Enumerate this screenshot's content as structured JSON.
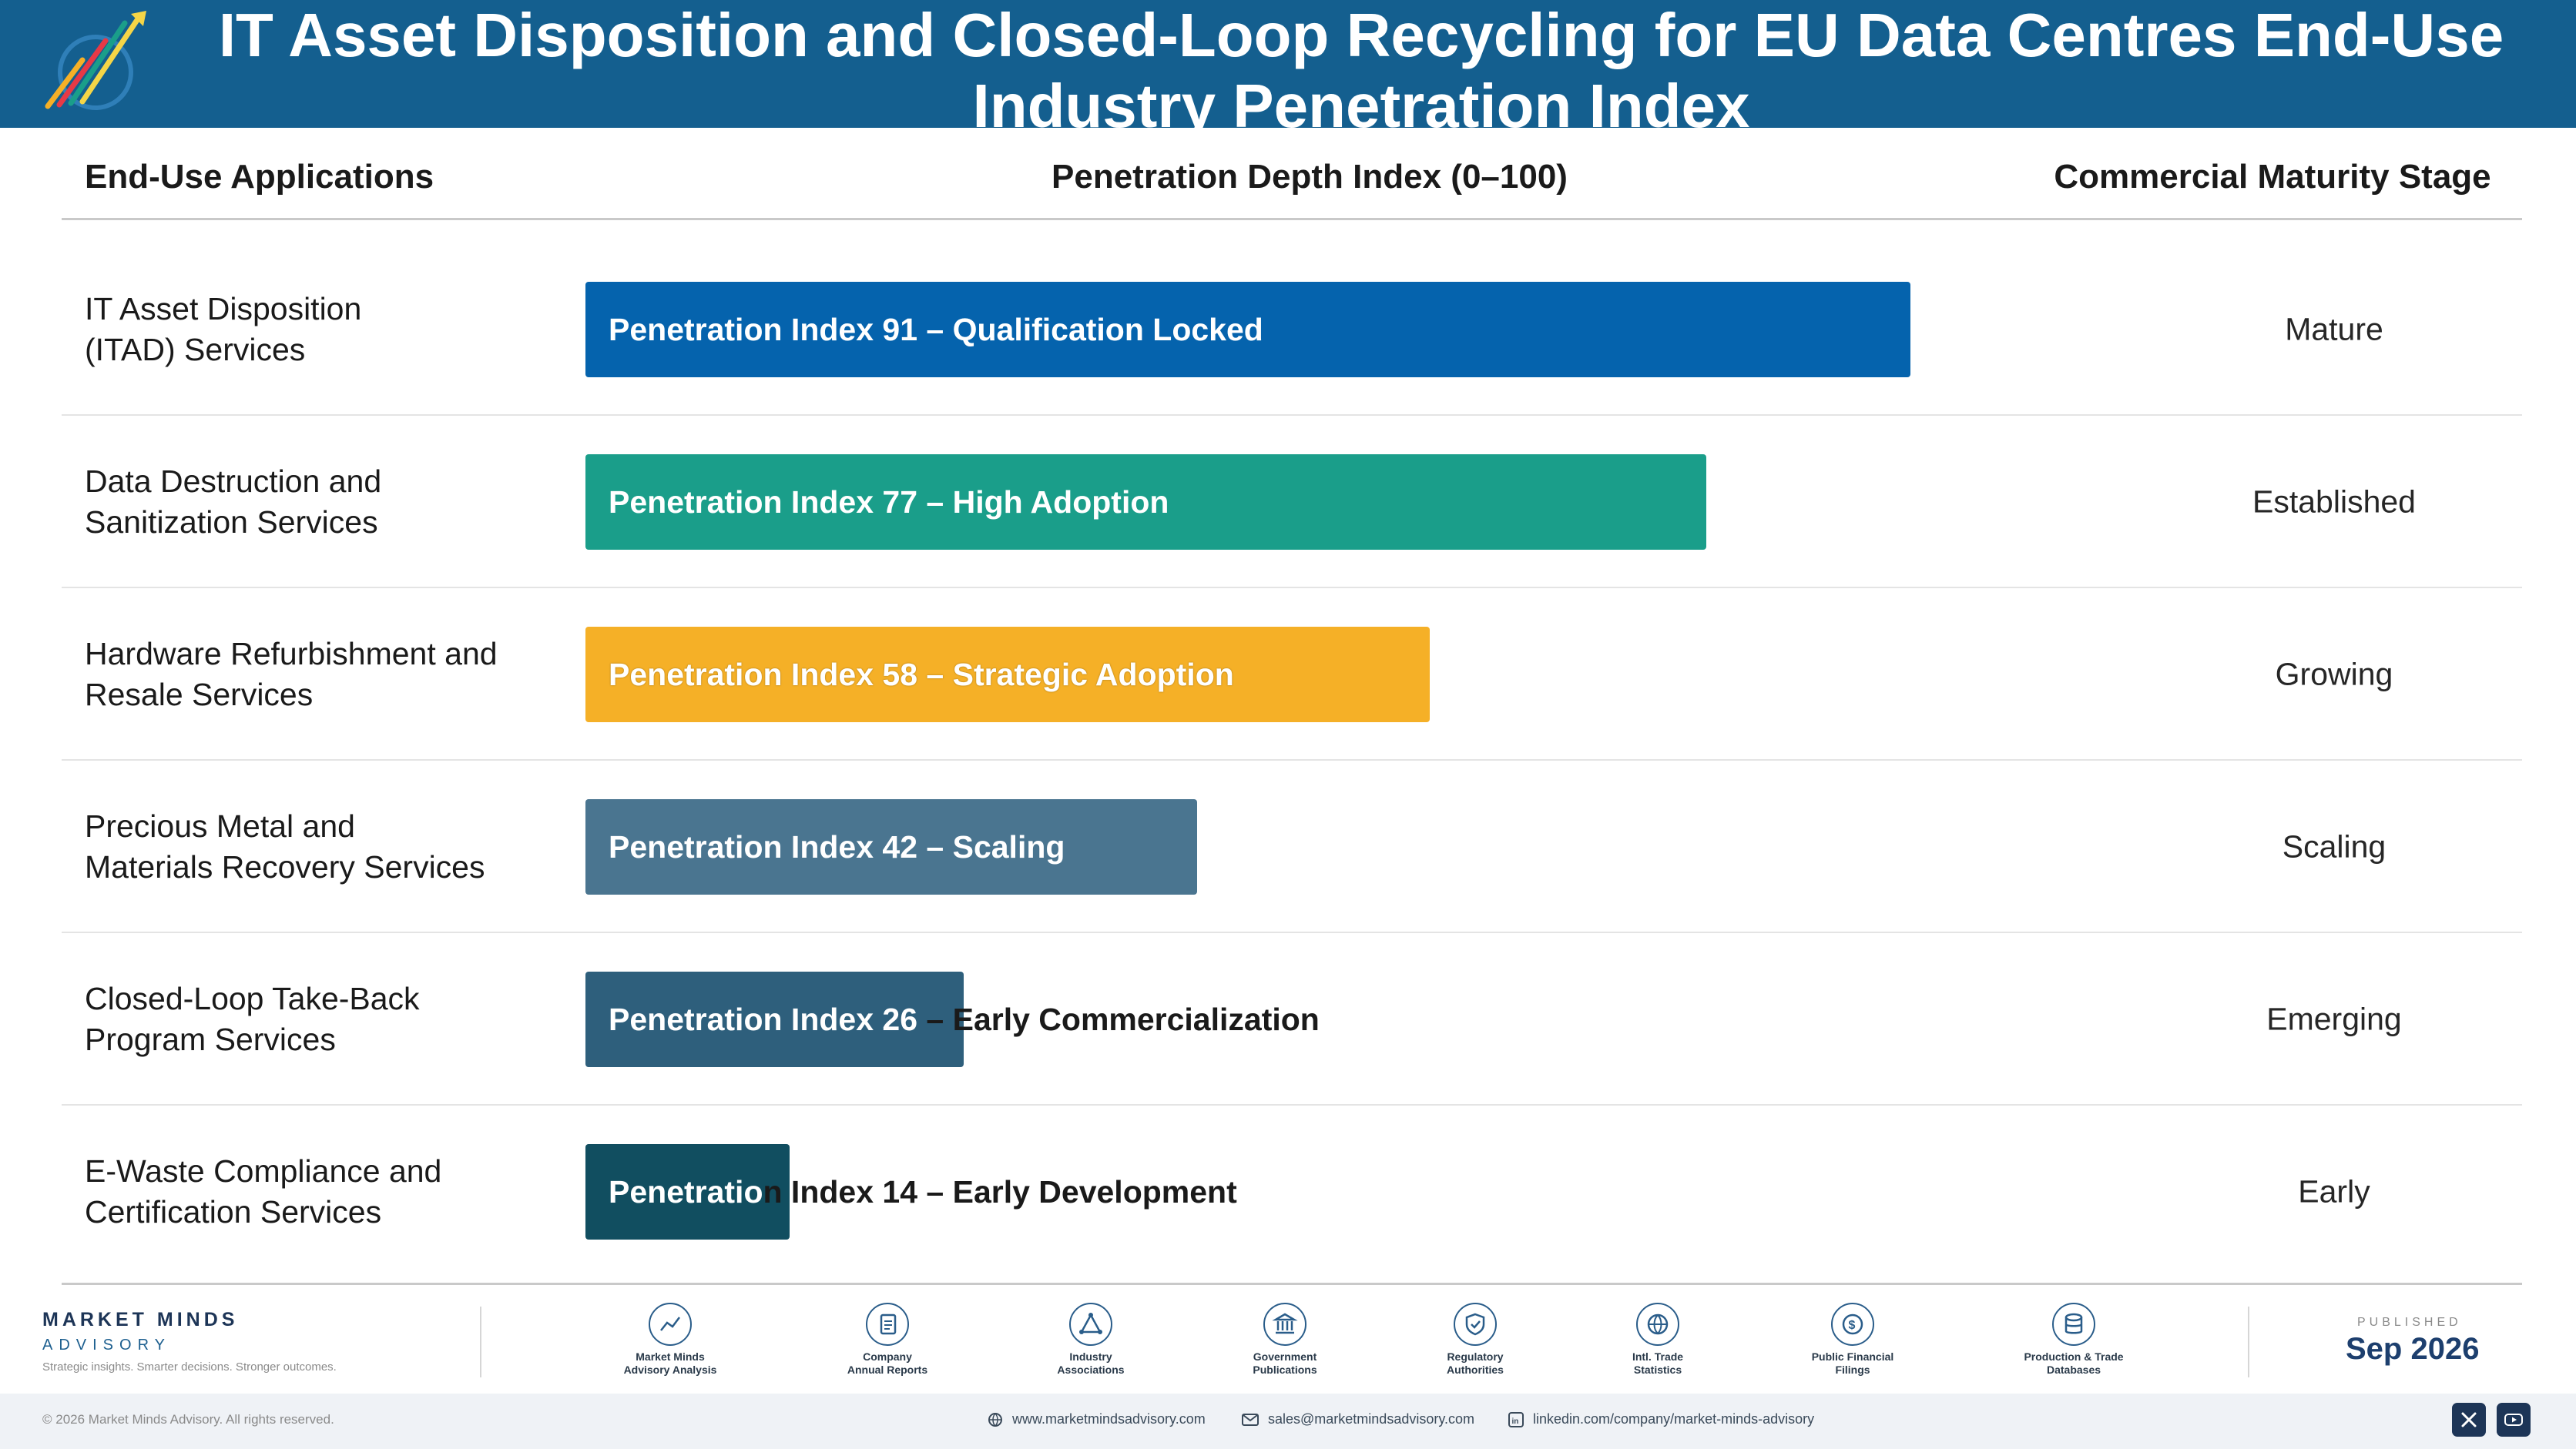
{
  "header": {
    "title": "IT Asset Disposition and Closed-Loop Recycling for EU Data Centres End-Use Industry Penetration Index",
    "logo_text": "Market Minds Advisory"
  },
  "columns": {
    "applications": "End-Use Applications",
    "penetration": "Penetration Depth Index (0–100)",
    "maturity": "Commercial Maturity Stage"
  },
  "chart_data": {
    "type": "bar",
    "orientation": "horizontal",
    "title": "IT Asset Disposition and Closed-Loop Recycling for EU Data Centres End-Use Industry Penetration Index",
    "xlabel": "Penetration Depth Index (0–100)",
    "xlim": [
      0,
      100
    ],
    "categories": [
      "IT Asset Disposition\n(ITAD) Services",
      "Data Destruction and\nSanitization Services",
      "Hardware Refurbishment and\nResale Services",
      "Precious Metal and\nMaterials Recovery Services",
      "Closed-Loop Take-Back\nProgram Services",
      "E-Waste Compliance and\nCertification Services"
    ],
    "values": [
      91,
      77,
      58,
      42,
      26,
      14
    ],
    "bar_labels": [
      "Penetration Index 91 – Qualification Locked",
      "Penetration Index 77 – High Adoption",
      "Penetration Index 58 – Strategic Adoption",
      "Penetration Index 42 – Scaling",
      "Penetration Index 26 – Early Commercialization",
      "Penetration Index 14 – Early Development"
    ],
    "maturity_stage": [
      "Mature",
      "Established",
      "Growing",
      "Scaling",
      "Emerging",
      "Early"
    ],
    "colors": [
      "#0563ad",
      "#1a9e8a",
      "#f5b027",
      "#4a7590",
      "#2e5f7c",
      "#114e60"
    ]
  },
  "footer": {
    "brand_name": "MARKET MINDS",
    "brand_sub": "ADVISORY",
    "tagline": "Strategic insights. Smarter decisions. Stronger outcomes.",
    "sources": [
      {
        "label": "Market Minds\nAdvisory Analysis",
        "icon": "chart-line-icon"
      },
      {
        "label": "Company\nAnnual Reports",
        "icon": "document-icon"
      },
      {
        "label": "Industry\nAssociations",
        "icon": "network-icon"
      },
      {
        "label": "Government\nPublications",
        "icon": "government-building-icon"
      },
      {
        "label": "Regulatory\nAuthorities",
        "icon": "shield-icon"
      },
      {
        "label": "Intl. Trade\nStatistics",
        "icon": "globe-icon"
      },
      {
        "label": "Public Financial\nFilings",
        "icon": "dollar-icon"
      },
      {
        "label": "Production & Trade\nDatabases",
        "icon": "database-icon"
      }
    ],
    "published_label": "PUBLISHED",
    "published_date": "Sep 2026",
    "copyright": "© 2026 Market Minds Advisory. All rights reserved.",
    "website": "www.marketmindsadvisory.com",
    "email": "sales@marketmindsadvisory.com",
    "linkedin": "linkedin.com/company/market-minds-advisory"
  }
}
